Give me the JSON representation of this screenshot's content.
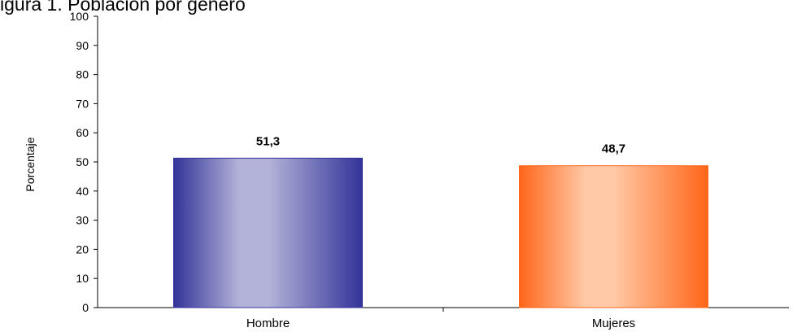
{
  "chart_data": {
    "type": "bar",
    "title": "igura 1. Población por género",
    "ylabel": "Porcentaje",
    "xlabel": "",
    "categories": [
      "Hombre",
      "Mujeres"
    ],
    "values": [
      51.3,
      48.7
    ],
    "data_labels": [
      "51,3",
      "48,7"
    ],
    "ylim": [
      0,
      100
    ],
    "yticks": [
      0,
      10,
      20,
      30,
      40,
      50,
      60,
      70,
      80,
      90,
      100
    ],
    "grid": false,
    "legend": "none",
    "colors": {
      "Hombre": {
        "edge": "#333399",
        "center": "#b3b3d9"
      },
      "Mujeres": {
        "edge": "#ff6619",
        "center": "#ffc8a6"
      }
    }
  }
}
